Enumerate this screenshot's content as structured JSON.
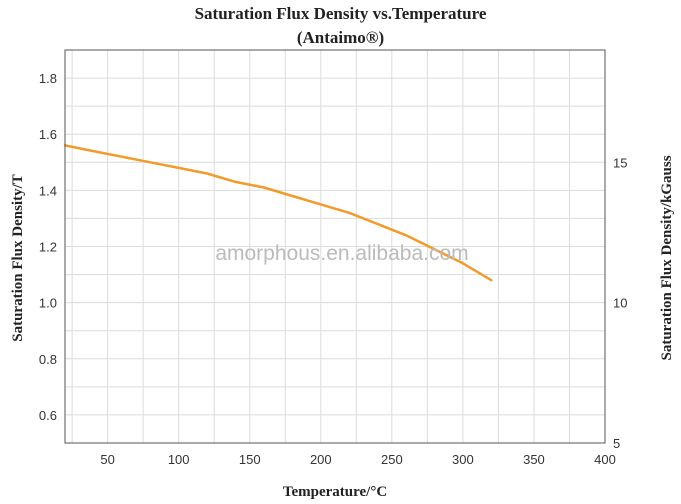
{
  "chart_data": {
    "type": "line",
    "title": "Saturation Flux Density vs.Temperature",
    "subtitle": "(Antaimo®)",
    "xlabel": "Temperature/°C",
    "ylabel": "Saturation Flux Density/T",
    "y2label": "Saturation Flux Density/kGauss",
    "watermark": "amorphous.en.alibaba.com",
    "xlim": [
      20,
      400
    ],
    "ylim": [
      0.5,
      1.9
    ],
    "y2lim": [
      5,
      19
    ],
    "x_ticks": [
      "50",
      "100",
      "150",
      "200",
      "250",
      "300",
      "350",
      "400"
    ],
    "y_ticks": [
      "0.6",
      "0.8",
      "1.0",
      "1.2",
      "1.4",
      "1.6",
      "1.8"
    ],
    "y2_ticks": [
      "5",
      "10",
      "15"
    ],
    "grid": true,
    "line_color": "#f39a2b",
    "series": [
      {
        "x": [
          20,
          40,
          60,
          80,
          100,
          120,
          140,
          160,
          180,
          200,
          220,
          240,
          260,
          280,
          300,
          320
        ],
        "y": [
          1.56,
          1.54,
          1.52,
          1.5,
          1.48,
          1.46,
          1.43,
          1.41,
          1.38,
          1.35,
          1.32,
          1.28,
          1.24,
          1.19,
          1.14,
          1.08
        ]
      }
    ]
  }
}
